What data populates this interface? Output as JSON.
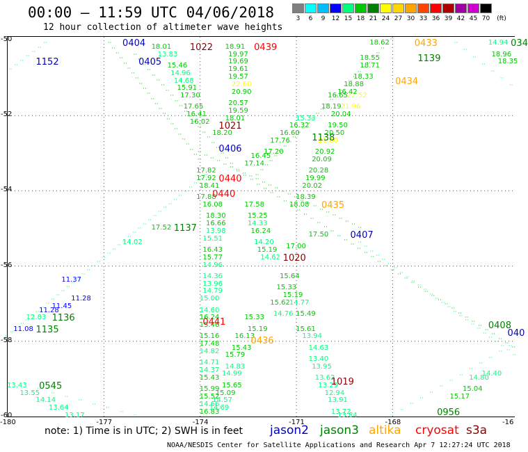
{
  "title": "00:00 – 11:59 UTC 04/06/2018",
  "subtitle": "12 hour collection of altimeter wave heights",
  "legend": {
    "unit": "(ft)",
    "bins": [
      {
        "label": "3",
        "color": "#7f7f7f"
      },
      {
        "label": "6",
        "color": "#00ffff"
      },
      {
        "label": "9",
        "color": "#00bfff"
      },
      {
        "label": "12",
        "color": "#0000ff"
      },
      {
        "label": "15",
        "color": "#00ff7f"
      },
      {
        "label": "18",
        "color": "#00c800"
      },
      {
        "label": "21",
        "color": "#007f00"
      },
      {
        "label": "24",
        "color": "#ffff00"
      },
      {
        "label": "27",
        "color": "#ffd700"
      },
      {
        "label": "30",
        "color": "#ffa500"
      },
      {
        "label": "33",
        "color": "#ff4500"
      },
      {
        "label": "36",
        "color": "#ff0000"
      },
      {
        "label": "39",
        "color": "#b00000"
      },
      {
        "label": "42",
        "color": "#a000a0"
      },
      {
        "label": "45",
        "color": "#d000d0"
      },
      {
        "label": "70",
        "color": "#000000"
      }
    ]
  },
  "map": {
    "lon_range": [
      -180,
      -164
    ],
    "lat_range": [
      -60,
      -50
    ],
    "lon_ticks": [
      "-180",
      "-177",
      "-174",
      "-171",
      "-168",
      "-16"
    ],
    "lat_ticks": [
      "-50",
      "-52",
      "-54",
      "-56",
      "-58",
      "-60"
    ],
    "grid": "dotted"
  },
  "note": "note:  1) Time is in UTC;  2) SWH is in feet",
  "satellites": [
    {
      "name": "jason2",
      "color": "#0000c0"
    },
    {
      "name": "jason3",
      "color": "#008000"
    },
    {
      "name": "altika",
      "color": "#ffa500"
    },
    {
      "name": "cryosat",
      "color": "#ff0000"
    },
    {
      "name": "s3a",
      "color": "#8b0000"
    }
  ],
  "footer": "NOAA/NESDIS Center for Satellite Applications and Research   Apr  7 12:27:24 UTC 2018",
  "passes": [
    {
      "label": "0404",
      "color": "#0000c0",
      "lon": -176.4,
      "lat": -50.1
    },
    {
      "label": "1022",
      "color": "#8b0000",
      "lon": -174.3,
      "lat": -50.2
    },
    {
      "label": "0439",
      "color": "#ff0000",
      "lon": -172.3,
      "lat": -50.2
    },
    {
      "label": "0433",
      "color": "#ffa500",
      "lon": -167.3,
      "lat": -50.1
    },
    {
      "label": "034",
      "color": "#008000",
      "lon": -164.3,
      "lat": -50.1
    },
    {
      "label": "1152",
      "color": "#0000c0",
      "lon": -179.1,
      "lat": -50.6
    },
    {
      "label": "0405",
      "color": "#0000c0",
      "lon": -175.9,
      "lat": -50.6
    },
    {
      "label": "1139",
      "color": "#008000",
      "lon": -167.2,
      "lat": -50.5
    },
    {
      "label": "0434",
      "color": "#ffa500",
      "lon": -167.9,
      "lat": -51.1
    },
    {
      "label": "1021",
      "color": "#8b0000",
      "lon": -173.4,
      "lat": -52.3
    },
    {
      "label": "1138",
      "color": "#008000",
      "lon": -170.5,
      "lat": -52.6
    },
    {
      "label": "0406",
      "color": "#0000c0",
      "lon": -173.4,
      "lat": -52.9
    },
    {
      "label": "0440",
      "color": "#ff0000",
      "lon": -173.4,
      "lat": -53.7
    },
    {
      "label": "0440",
      "color": "#ff0000",
      "lon": -173.6,
      "lat": -54.1
    },
    {
      "label": "0435",
      "color": "#ffa500",
      "lon": -170.2,
      "lat": -54.4
    },
    {
      "label": "1137",
      "color": "#008000",
      "lon": -174.8,
      "lat": -55.0
    },
    {
      "label": "0407",
      "color": "#0000c0",
      "lon": -169.3,
      "lat": -55.2
    },
    {
      "label": "1020",
      "color": "#8b0000",
      "lon": -171.4,
      "lat": -55.8
    },
    {
      "label": "1136",
      "color": "#008000",
      "lon": -178.6,
      "lat": -57.4
    },
    {
      "label": "1135",
      "color": "#008000",
      "lon": -179.1,
      "lat": -57.7
    },
    {
      "label": "0441",
      "color": "#ff0000",
      "lon": -173.9,
      "lat": -57.5
    },
    {
      "label": "0436",
      "color": "#ffa500",
      "lon": -172.4,
      "lat": -58.0
    },
    {
      "label": "0408",
      "color": "#008000",
      "lon": -165.0,
      "lat": -57.6
    },
    {
      "label": "040",
      "color": "#0000c0",
      "lon": -164.4,
      "lat": -57.8
    },
    {
      "label": "1019",
      "color": "#8b0000",
      "lon": -169.9,
      "lat": -59.1
    },
    {
      "label": "0545",
      "color": "#008000",
      "lon": -179.0,
      "lat": -59.2
    },
    {
      "label": "0956",
      "color": "#008000",
      "lon": -166.6,
      "lat": -59.9
    }
  ],
  "readings": [
    {
      "v": "18.01",
      "c": "#00c800",
      "lon": -175.5,
      "lat": -50.2
    },
    {
      "v": "13.83",
      "c": "#00ff7f",
      "lon": -175.3,
      "lat": -50.4
    },
    {
      "v": "15.46",
      "c": "#00c800",
      "lon": -175.0,
      "lat": -50.7
    },
    {
      "v": "14.96",
      "c": "#00ff7f",
      "lon": -174.9,
      "lat": -50.9
    },
    {
      "v": "14.68",
      "c": "#00ff7f",
      "lon": -174.8,
      "lat": -51.1
    },
    {
      "v": "15.91",
      "c": "#00c800",
      "lon": -174.7,
      "lat": -51.3
    },
    {
      "v": "17.30",
      "c": "#00c800",
      "lon": -174.6,
      "lat": -51.5
    },
    {
      "v": "17.65",
      "c": "#00c800",
      "lon": -174.5,
      "lat": -51.8
    },
    {
      "v": "16.41",
      "c": "#00c800",
      "lon": -174.4,
      "lat": -52.0
    },
    {
      "v": "16.02",
      "c": "#00c800",
      "lon": -174.3,
      "lat": -52.2
    },
    {
      "v": "18.91",
      "c": "#00c800",
      "lon": -173.2,
      "lat": -50.2
    },
    {
      "v": "19.97",
      "c": "#00c800",
      "lon": -173.1,
      "lat": -50.4
    },
    {
      "v": "19.69",
      "c": "#00c800",
      "lon": -173.1,
      "lat": -50.6
    },
    {
      "v": "19.61",
      "c": "#00c800",
      "lon": -173.1,
      "lat": -50.8
    },
    {
      "v": "19.57",
      "c": "#00c800",
      "lon": -173.1,
      "lat": -51.0
    },
    {
      "v": "22.60",
      "c": "#ffff00",
      "lon": -173.0,
      "lat": -51.2
    },
    {
      "v": "20.90",
      "c": "#00c800",
      "lon": -173.0,
      "lat": -51.4
    },
    {
      "v": "20.57",
      "c": "#00c800",
      "lon": -173.1,
      "lat": -51.7
    },
    {
      "v": "19.59",
      "c": "#00c800",
      "lon": -173.1,
      "lat": -51.9
    },
    {
      "v": "18.01",
      "c": "#00c800",
      "lon": -173.2,
      "lat": -52.1
    },
    {
      "v": "18.20",
      "c": "#00c800",
      "lon": -173.6,
      "lat": -52.5
    },
    {
      "v": "17.82",
      "c": "#00c800",
      "lon": -174.1,
      "lat": -53.5
    },
    {
      "v": "17.92",
      "c": "#00c800",
      "lon": -174.1,
      "lat": -53.7
    },
    {
      "v": "18.41",
      "c": "#00c800",
      "lon": -174.0,
      "lat": -53.9
    },
    {
      "v": "17.88",
      "c": "#00c800",
      "lon": -174.1,
      "lat": -54.2
    },
    {
      "v": "16.08",
      "c": "#00c800",
      "lon": -173.9,
      "lat": -54.4
    },
    {
      "v": "18.30",
      "c": "#00c800",
      "lon": -173.8,
      "lat": -54.7
    },
    {
      "v": "16.66",
      "c": "#00c800",
      "lon": -173.8,
      "lat": -54.9
    },
    {
      "v": "13.98",
      "c": "#00ff7f",
      "lon": -173.8,
      "lat": -55.1
    },
    {
      "v": "15.51",
      "c": "#00ff7f",
      "lon": -173.9,
      "lat": -55.3
    },
    {
      "v": "16.43",
      "c": "#00c800",
      "lon": -173.9,
      "lat": -55.6
    },
    {
      "v": "15.77",
      "c": "#00c800",
      "lon": -173.9,
      "lat": -55.8
    },
    {
      "v": "14.96",
      "c": "#00ff7f",
      "lon": -173.9,
      "lat": -56.0
    },
    {
      "v": "14.36",
      "c": "#00ff7f",
      "lon": -173.9,
      "lat": -56.3
    },
    {
      "v": "13.96",
      "c": "#00ff7f",
      "lon": -173.9,
      "lat": -56.5
    },
    {
      "v": "14.79",
      "c": "#00ff7f",
      "lon": -173.9,
      "lat": -56.7
    },
    {
      "v": "15.00",
      "c": "#00ff7f",
      "lon": -174.0,
      "lat": -56.9
    },
    {
      "v": "14.60",
      "c": "#00ff7f",
      "lon": -174.0,
      "lat": -57.2
    },
    {
      "v": "16.24",
      "c": "#00c800",
      "lon": -174.0,
      "lat": -57.4
    },
    {
      "v": "15.46",
      "c": "#00c800",
      "lon": -174.0,
      "lat": -57.6
    },
    {
      "v": "15.16",
      "c": "#00c800",
      "lon": -174.0,
      "lat": -57.9
    },
    {
      "v": "17.48",
      "c": "#00c800",
      "lon": -174.0,
      "lat": -58.1
    },
    {
      "v": "14.82",
      "c": "#00ff7f",
      "lon": -174.0,
      "lat": -58.3
    },
    {
      "v": "14.71",
      "c": "#00ff7f",
      "lon": -174.0,
      "lat": -58.6
    },
    {
      "v": "14.37",
      "c": "#00ff7f",
      "lon": -174.0,
      "lat": -58.8
    },
    {
      "v": "15.43",
      "c": "#00c800",
      "lon": -174.0,
      "lat": -59.0
    },
    {
      "v": "15.99",
      "c": "#00c800",
      "lon": -174.0,
      "lat": -59.3
    },
    {
      "v": "15.52",
      "c": "#00c800",
      "lon": -174.0,
      "lat": -59.5
    },
    {
      "v": "14.66",
      "c": "#00ff7f",
      "lon": -174.0,
      "lat": -59.7
    },
    {
      "v": "16.83",
      "c": "#00c800",
      "lon": -174.0,
      "lat": -59.9
    },
    {
      "v": "17.58",
      "c": "#00c800",
      "lon": -172.6,
      "lat": -54.4
    },
    {
      "v": "15.25",
      "c": "#00c800",
      "lon": -172.5,
      "lat": -54.7
    },
    {
      "v": "14.33",
      "c": "#00ff7f",
      "lon": -172.5,
      "lat": -54.9
    },
    {
      "v": "16.24",
      "c": "#00c800",
      "lon": -172.4,
      "lat": -55.1
    },
    {
      "v": "14.20",
      "c": "#00ff7f",
      "lon": -172.3,
      "lat": -55.4
    },
    {
      "v": "15.19",
      "c": "#00c800",
      "lon": -172.2,
      "lat": -55.6
    },
    {
      "v": "14.62",
      "c": "#00ff7f",
      "lon": -172.1,
      "lat": -55.8
    },
    {
      "v": "15.33",
      "c": "#00c800",
      "lon": -172.6,
      "lat": -57.4
    },
    {
      "v": "15.19",
      "c": "#00c800",
      "lon": -172.5,
      "lat": -57.7
    },
    {
      "v": "16.13",
      "c": "#00c800",
      "lon": -172.9,
      "lat": -57.9
    },
    {
      "v": "15.43",
      "c": "#00c800",
      "lon": -173.0,
      "lat": -58.2
    },
    {
      "v": "15.79",
      "c": "#00c800",
      "lon": -173.2,
      "lat": -58.4
    },
    {
      "v": "14.83",
      "c": "#00ff7f",
      "lon": -173.2,
      "lat": -58.7
    },
    {
      "v": "14.99",
      "c": "#00ff7f",
      "lon": -173.3,
      "lat": -58.9
    },
    {
      "v": "15.65",
      "c": "#00c800",
      "lon": -173.3,
      "lat": -59.2
    },
    {
      "v": "15.09",
      "c": "#00c800",
      "lon": -173.5,
      "lat": -59.4
    },
    {
      "v": "14.57",
      "c": "#00ff7f",
      "lon": -173.6,
      "lat": -59.6
    },
    {
      "v": "14.69",
      "c": "#00ff7f",
      "lon": -173.7,
      "lat": -59.8
    },
    {
      "v": "15.64",
      "c": "#00c800",
      "lon": -171.5,
      "lat": -56.3
    },
    {
      "v": "15.33",
      "c": "#00c800",
      "lon": -171.6,
      "lat": -56.6
    },
    {
      "v": "15.19",
      "c": "#00c800",
      "lon": -171.4,
      "lat": -56.8
    },
    {
      "v": "15.62",
      "c": "#00c800",
      "lon": -171.8,
      "lat": -57.0
    },
    {
      "v": "14.77",
      "c": "#00ff7f",
      "lon": -171.2,
      "lat": -57.0
    },
    {
      "v": "14.76",
      "c": "#00ff7f",
      "lon": -171.7,
      "lat": -57.3
    },
    {
      "v": "15.49",
      "c": "#00c800",
      "lon": -171.0,
      "lat": -57.3
    },
    {
      "v": "15.61",
      "c": "#00c800",
      "lon": -171.0,
      "lat": -57.7
    },
    {
      "v": "13.94",
      "c": "#00ff7f",
      "lon": -170.8,
      "lat": -57.9
    },
    {
      "v": "14.63",
      "c": "#00ff7f",
      "lon": -170.6,
      "lat": -58.2
    },
    {
      "v": "13.40",
      "c": "#00ff7f",
      "lon": -170.6,
      "lat": -58.5
    },
    {
      "v": "13.95",
      "c": "#00ff7f",
      "lon": -170.5,
      "lat": -58.7
    },
    {
      "v": "13.62",
      "c": "#00ff7f",
      "lon": -170.4,
      "lat": -59.0
    },
    {
      "v": "13.29",
      "c": "#00ff7f",
      "lon": -170.3,
      "lat": -59.2
    },
    {
      "v": "12.94",
      "c": "#00ff7f",
      "lon": -170.1,
      "lat": -59.4
    },
    {
      "v": "13.91",
      "c": "#00ff7f",
      "lon": -170.0,
      "lat": -59.6
    },
    {
      "v": "13.72",
      "c": "#00ff7f",
      "lon": -169.9,
      "lat": -59.9
    },
    {
      "v": "13.84",
      "c": "#00ff7f",
      "lon": -169.7,
      "lat": -60.0
    },
    {
      "v": "17.00",
      "c": "#00c800",
      "lon": -171.3,
      "lat": -55.5
    },
    {
      "v": "17.50",
      "c": "#00c800",
      "lon": -170.6,
      "lat": -55.2
    },
    {
      "v": "18.08",
      "c": "#00c800",
      "lon": -171.2,
      "lat": -54.4
    },
    {
      "v": "18.39",
      "c": "#00c800",
      "lon": -171.0,
      "lat": -54.2
    },
    {
      "v": "20.02",
      "c": "#00c800",
      "lon": -170.8,
      "lat": -53.9
    },
    {
      "v": "19.99",
      "c": "#00c800",
      "lon": -170.7,
      "lat": -53.7
    },
    {
      "v": "20.28",
      "c": "#00c800",
      "lon": -170.6,
      "lat": -53.5
    },
    {
      "v": "20.09",
      "c": "#00c800",
      "lon": -170.5,
      "lat": -53.2
    },
    {
      "v": "20.92",
      "c": "#00c800",
      "lon": -170.4,
      "lat": -53.0
    },
    {
      "v": "21.80",
      "c": "#ffff00",
      "lon": -170.3,
      "lat": -52.7
    },
    {
      "v": "20.50",
      "c": "#00c800",
      "lon": -170.1,
      "lat": -52.5
    },
    {
      "v": "19.50",
      "c": "#00c800",
      "lon": -170.0,
      "lat": -52.3
    },
    {
      "v": "20.04",
      "c": "#00c800",
      "lon": -169.9,
      "lat": -52.0
    },
    {
      "v": "21.96",
      "c": "#ffff00",
      "lon": -169.6,
      "lat": -51.8
    },
    {
      "v": "22.52",
      "c": "#ffff00",
      "lon": -169.4,
      "lat": -51.5
    },
    {
      "v": "16.42",
      "c": "#00c800",
      "lon": -169.7,
      "lat": -51.4
    },
    {
      "v": "16.65",
      "c": "#00c800",
      "lon": -170.0,
      "lat": -51.5
    },
    {
      "v": "18.19",
      "c": "#00c800",
      "lon": -170.2,
      "lat": -51.8
    },
    {
      "v": "18.88",
      "c": "#00c800",
      "lon": -169.5,
      "lat": -51.2
    },
    {
      "v": "18.33",
      "c": "#00c800",
      "lon": -169.2,
      "lat": -51.0
    },
    {
      "v": "18.71",
      "c": "#00c800",
      "lon": -169.0,
      "lat": -50.7
    },
    {
      "v": "18.55",
      "c": "#00c800",
      "lon": -169.0,
      "lat": -50.5
    },
    {
      "v": "18.62",
      "c": "#00c800",
      "lon": -168.7,
      "lat": -50.1
    },
    {
      "v": "15.33",
      "c": "#00ff7f",
      "lon": -171.0,
      "lat": -52.1
    },
    {
      "v": "16.32",
      "c": "#00c800",
      "lon": -171.2,
      "lat": -52.3
    },
    {
      "v": "16.60",
      "c": "#00c800",
      "lon": -171.5,
      "lat": -52.5
    },
    {
      "v": "17.76",
      "c": "#00c800",
      "lon": -171.8,
      "lat": -52.7
    },
    {
      "v": "17.20",
      "c": "#00c800",
      "lon": -172.0,
      "lat": -53.0
    },
    {
      "v": "16.45",
      "c": "#00c800",
      "lon": -172.4,
      "lat": -53.1
    },
    {
      "v": "17.14",
      "c": "#00c800",
      "lon": -172.6,
      "lat": -53.3
    },
    {
      "v": "17.52",
      "c": "#00c800",
      "lon": -175.5,
      "lat": -55.0
    },
    {
      "v": "14.02",
      "c": "#00ff7f",
      "lon": -176.4,
      "lat": -55.4
    },
    {
      "v": "11.37",
      "c": "#0000ff",
      "lon": -178.3,
      "lat": -56.4
    },
    {
      "v": "11.28",
      "c": "#0000ff",
      "lon": -178.0,
      "lat": -56.9
    },
    {
      "v": "11.45",
      "c": "#0000ff",
      "lon": -178.6,
      "lat": -57.1
    },
    {
      "v": "11.28",
      "c": "#0000ff",
      "lon": -179.0,
      "lat": -57.2
    },
    {
      "v": "12.83",
      "c": "#00ff7f",
      "lon": -179.4,
      "lat": -57.4
    },
    {
      "v": "11.08",
      "c": "#0000ff",
      "lon": -179.8,
      "lat": -57.7
    },
    {
      "v": "13.43",
      "c": "#00ff7f",
      "lon": -180.0,
      "lat": -59.2
    },
    {
      "v": "13.55",
      "c": "#00ff7f",
      "lon": -179.6,
      "lat": -59.4
    },
    {
      "v": "14.14",
      "c": "#00ff7f",
      "lon": -179.1,
      "lat": -59.6
    },
    {
      "v": "13.64",
      "c": "#00ff7f",
      "lon": -178.7,
      "lat": -59.8
    },
    {
      "v": "13.17",
      "c": "#00ff7f",
      "lon": -178.2,
      "lat": -60.0
    },
    {
      "v": "15.04",
      "c": "#00c800",
      "lon": -165.8,
      "lat": -59.3
    },
    {
      "v": "15.17",
      "c": "#00c800",
      "lon": -166.2,
      "lat": -59.5
    },
    {
      "v": "14.80",
      "c": "#00ff7f",
      "lon": -165.6,
      "lat": -59.0
    },
    {
      "v": "14.40",
      "c": "#00ff7f",
      "lon": -165.2,
      "lat": -58.9
    },
    {
      "v": "18.96",
      "c": "#00c800",
      "lon": -164.9,
      "lat": -50.4
    },
    {
      "v": "18.35",
      "c": "#00c800",
      "lon": -164.7,
      "lat": -50.6
    },
    {
      "v": "14.94",
      "c": "#00ff7f",
      "lon": -165.0,
      "lat": -50.1
    }
  ],
  "track_chains": [
    {
      "c": "#00ff7f",
      "from": [
        -179.9,
        -50.8
      ],
      "to": [
        -178.8,
        -50.1
      ],
      "n": 7
    },
    {
      "c": "#00c800",
      "from": [
        -176.8,
        -50.1
      ],
      "to": [
        -174.0,
        -53.2
      ],
      "n": 24
    },
    {
      "c": "#00c800",
      "from": [
        -176.0,
        -50.4
      ],
      "to": [
        -173.0,
        -53.3
      ],
      "n": 22
    },
    {
      "c": "#00c800",
      "from": [
        -174.0,
        -53.0
      ],
      "to": [
        -169.0,
        -55.0
      ],
      "n": 26
    },
    {
      "c": "#00c800",
      "from": [
        -173.0,
        -53.4
      ],
      "to": [
        -164.0,
        -58.3
      ],
      "n": 44
    },
    {
      "c": "#00ff7f",
      "from": [
        -173.8,
        -53.6
      ],
      "to": [
        -180.0,
        -57.9
      ],
      "n": 40
    },
    {
      "c": "#00ff7f",
      "from": [
        -169.0,
        -55.4
      ],
      "to": [
        -164.0,
        -58.5
      ],
      "n": 28
    },
    {
      "c": "#00ff7f",
      "from": [
        -179.0,
        -59.3
      ],
      "to": [
        -176.0,
        -60.0
      ],
      "n": 8
    },
    {
      "c": "#00ff7f",
      "from": [
        -168.0,
        -60.0
      ],
      "to": [
        -164.0,
        -58.0
      ],
      "n": 14
    },
    {
      "c": "#00c800",
      "from": [
        -172.2,
        -53.6
      ],
      "to": [
        -168.0,
        -50.0
      ],
      "n": 30
    },
    {
      "c": "#00ff7f",
      "from": [
        -166.0,
        -50.1
      ],
      "to": [
        -164.0,
        -51.4
      ],
      "n": 8
    }
  ]
}
